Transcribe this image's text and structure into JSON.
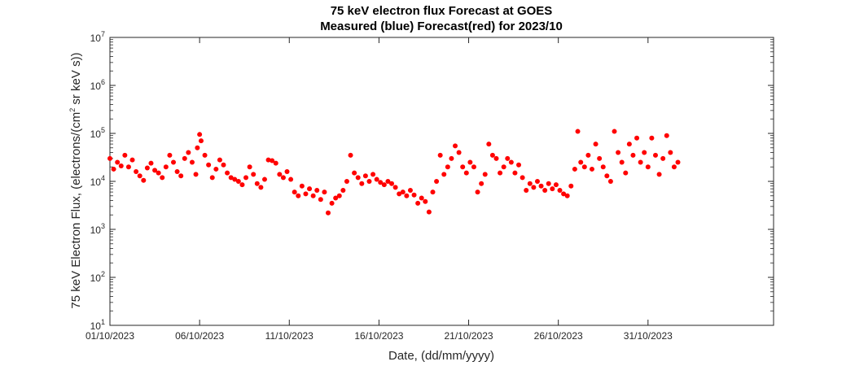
{
  "chart_data": {
    "type": "scatter",
    "title": "75 keV electron flux Forecast at GOES",
    "subtitle": "Measured (blue) Forecast(red) for 2023/10",
    "xlabel": "Date, (dd/mm/yyyy)",
    "ylabel": {
      "prefix": "75 keV Electron Flux, (electrons/(cm",
      "superscript": "2",
      "suffix": " sr keV s))"
    },
    "y_scale": "log",
    "ylim": [
      10,
      10000000
    ],
    "xlim": [
      "01/10/2023",
      "07/11/2023"
    ],
    "y_ticks": [
      {
        "base": "10",
        "exp": "1"
      },
      {
        "base": "10",
        "exp": "2"
      },
      {
        "base": "10",
        "exp": "3"
      },
      {
        "base": "10",
        "exp": "4"
      },
      {
        "base": "10",
        "exp": "5"
      },
      {
        "base": "10",
        "exp": "6"
      },
      {
        "base": "10",
        "exp": "7"
      }
    ],
    "x_ticks": [
      "01/10/2023",
      "06/10/2023",
      "11/10/2023",
      "16/10/2023",
      "21/10/2023",
      "26/10/2023",
      "31/10/2023"
    ],
    "grid": false,
    "marker_color": "#ff0000",
    "series": [
      {
        "color": "#ff0000",
        "points": [
          [
            "01/10/2023 00:00",
            30000
          ],
          [
            "01/10/2023 05:00",
            18000
          ],
          [
            "01/10/2023 10:00",
            25000
          ],
          [
            "01/10/2023 15:00",
            21000
          ],
          [
            "01/10/2023 20:00",
            35000
          ],
          [
            "02/10/2023 01:00",
            20000
          ],
          [
            "02/10/2023 06:00",
            28000
          ],
          [
            "02/10/2023 11:00",
            16000
          ],
          [
            "02/10/2023 16:00",
            13000
          ],
          [
            "02/10/2023 21:00",
            10500
          ],
          [
            "03/10/2023 02:00",
            19000
          ],
          [
            "03/10/2023 07:00",
            24000
          ],
          [
            "03/10/2023 12:00",
            17000
          ],
          [
            "03/10/2023 17:00",
            15000
          ],
          [
            "03/10/2023 22:00",
            12000
          ],
          [
            "04/10/2023 03:00",
            20000
          ],
          [
            "04/10/2023 08:00",
            35000
          ],
          [
            "04/10/2023 13:00",
            25000
          ],
          [
            "04/10/2023 18:00",
            16000
          ],
          [
            "04/10/2023 23:00",
            13000
          ],
          [
            "05/10/2023 04:00",
            30000
          ],
          [
            "05/10/2023 09:00",
            40000
          ],
          [
            "05/10/2023 14:00",
            25000
          ],
          [
            "05/10/2023 19:00",
            14000
          ],
          [
            "05/10/2023 21:00",
            50000
          ],
          [
            "06/10/2023 00:00",
            95000
          ],
          [
            "06/10/2023 02:00",
            70000
          ],
          [
            "06/10/2023 07:00",
            35000
          ],
          [
            "06/10/2023 12:00",
            22000
          ],
          [
            "06/10/2023 17:00",
            12000
          ],
          [
            "06/10/2023 22:00",
            18000
          ],
          [
            "07/10/2023 03:00",
            28000
          ],
          [
            "07/10/2023 08:00",
            22000
          ],
          [
            "07/10/2023 13:00",
            15000
          ],
          [
            "07/10/2023 18:00",
            12000
          ],
          [
            "07/10/2023 23:00",
            11000
          ],
          [
            "08/10/2023 04:00",
            10000
          ],
          [
            "08/10/2023 09:00",
            8500
          ],
          [
            "08/10/2023 14:00",
            12000
          ],
          [
            "08/10/2023 19:00",
            20000
          ],
          [
            "09/10/2023 00:00",
            14000
          ],
          [
            "09/10/2023 05:00",
            9000
          ],
          [
            "09/10/2023 10:00",
            7500
          ],
          [
            "09/10/2023 15:00",
            11000
          ],
          [
            "09/10/2023 20:00",
            28000
          ],
          [
            "10/10/2023 01:00",
            27000
          ],
          [
            "10/10/2023 06:00",
            24000
          ],
          [
            "10/10/2023 11:00",
            14000
          ],
          [
            "10/10/2023 16:00",
            12000
          ],
          [
            "10/10/2023 21:00",
            16000
          ],
          [
            "11/10/2023 02:00",
            11000
          ],
          [
            "11/10/2023 07:00",
            6000
          ],
          [
            "11/10/2023 12:00",
            5000
          ],
          [
            "11/10/2023 17:00",
            8000
          ],
          [
            "11/10/2023 22:00",
            5500
          ],
          [
            "12/10/2023 03:00",
            7000
          ],
          [
            "12/10/2023 08:00",
            5000
          ],
          [
            "12/10/2023 13:00",
            6500
          ],
          [
            "12/10/2023 18:00",
            4200
          ],
          [
            "12/10/2023 23:00",
            6000
          ],
          [
            "13/10/2023 04:00",
            2200
          ],
          [
            "13/10/2023 09:00",
            3500
          ],
          [
            "13/10/2023 14:00",
            4500
          ],
          [
            "13/10/2023 19:00",
            5000
          ],
          [
            "14/10/2023 00:00",
            6500
          ],
          [
            "14/10/2023 05:00",
            10000
          ],
          [
            "14/10/2023 10:00",
            35000
          ],
          [
            "14/10/2023 15:00",
            15000
          ],
          [
            "14/10/2023 20:00",
            12000
          ],
          [
            "15/10/2023 01:00",
            9000
          ],
          [
            "15/10/2023 06:00",
            13000
          ],
          [
            "15/10/2023 11:00",
            10000
          ],
          [
            "15/10/2023 16:00",
            14000
          ],
          [
            "15/10/2023 21:00",
            11000
          ],
          [
            "16/10/2023 02:00",
            9500
          ],
          [
            "16/10/2023 07:00",
            8500
          ],
          [
            "16/10/2023 12:00",
            10000
          ],
          [
            "16/10/2023 17:00",
            9000
          ],
          [
            "16/10/2023 22:00",
            7500
          ],
          [
            "17/10/2023 03:00",
            5500
          ],
          [
            "17/10/2023 08:00",
            6000
          ],
          [
            "17/10/2023 13:00",
            5000
          ],
          [
            "17/10/2023 18:00",
            6500
          ],
          [
            "17/10/2023 23:00",
            5200
          ],
          [
            "18/10/2023 04:00",
            3500
          ],
          [
            "18/10/2023 09:00",
            4500
          ],
          [
            "18/10/2023 14:00",
            3800
          ],
          [
            "18/10/2023 19:00",
            2300
          ],
          [
            "19/10/2023 00:00",
            6000
          ],
          [
            "19/10/2023 05:00",
            10000
          ],
          [
            "19/10/2023 10:00",
            35000
          ],
          [
            "19/10/2023 15:00",
            14000
          ],
          [
            "19/10/2023 20:00",
            20000
          ],
          [
            "20/10/2023 01:00",
            30000
          ],
          [
            "20/10/2023 06:00",
            55000
          ],
          [
            "20/10/2023 11:00",
            40000
          ],
          [
            "20/10/2023 16:00",
            20000
          ],
          [
            "20/10/2023 21:00",
            15000
          ],
          [
            "21/10/2023 02:00",
            25000
          ],
          [
            "21/10/2023 07:00",
            20000
          ],
          [
            "21/10/2023 12:00",
            6000
          ],
          [
            "21/10/2023 17:00",
            9000
          ],
          [
            "21/10/2023 22:00",
            14000
          ],
          [
            "22/10/2023 03:00",
            60000
          ],
          [
            "22/10/2023 08:00",
            35000
          ],
          [
            "22/10/2023 13:00",
            30000
          ],
          [
            "22/10/2023 18:00",
            15000
          ],
          [
            "22/10/2023 23:00",
            20000
          ],
          [
            "23/10/2023 04:00",
            30000
          ],
          [
            "23/10/2023 09:00",
            25000
          ],
          [
            "23/10/2023 14:00",
            15000
          ],
          [
            "23/10/2023 19:00",
            22000
          ],
          [
            "24/10/2023 00:00",
            12000
          ],
          [
            "24/10/2023 05:00",
            6500
          ],
          [
            "24/10/2023 10:00",
            9000
          ],
          [
            "24/10/2023 15:00",
            7500
          ],
          [
            "24/10/2023 20:00",
            10000
          ],
          [
            "25/10/2023 01:00",
            8000
          ],
          [
            "25/10/2023 06:00",
            6500
          ],
          [
            "25/10/2023 11:00",
            9000
          ],
          [
            "25/10/2023 16:00",
            7000
          ],
          [
            "25/10/2023 21:00",
            8500
          ],
          [
            "26/10/2023 02:00",
            6500
          ],
          [
            "26/10/2023 07:00",
            5500
          ],
          [
            "26/10/2023 12:00",
            5000
          ],
          [
            "26/10/2023 17:00",
            8000
          ],
          [
            "26/10/2023 22:00",
            18000
          ],
          [
            "27/10/2023 02:00",
            110000
          ],
          [
            "27/10/2023 06:00",
            25000
          ],
          [
            "27/10/2023 11:00",
            20000
          ],
          [
            "27/10/2023 16:00",
            35000
          ],
          [
            "27/10/2023 21:00",
            18000
          ],
          [
            "28/10/2023 02:00",
            60000
          ],
          [
            "28/10/2023 07:00",
            30000
          ],
          [
            "28/10/2023 12:00",
            20000
          ],
          [
            "28/10/2023 17:00",
            13000
          ],
          [
            "28/10/2023 22:00",
            10000
          ],
          [
            "29/10/2023 03:00",
            110000
          ],
          [
            "29/10/2023 08:00",
            40000
          ],
          [
            "29/10/2023 13:00",
            25000
          ],
          [
            "29/10/2023 18:00",
            15000
          ],
          [
            "29/10/2023 23:00",
            60000
          ],
          [
            "30/10/2023 04:00",
            35000
          ],
          [
            "30/10/2023 09:00",
            80000
          ],
          [
            "30/10/2023 14:00",
            25000
          ],
          [
            "30/10/2023 19:00",
            40000
          ],
          [
            "31/10/2023 00:00",
            20000
          ],
          [
            "31/10/2023 05:00",
            80000
          ],
          [
            "31/10/2023 10:00",
            35000
          ],
          [
            "31/10/2023 15:00",
            14000
          ],
          [
            "31/10/2023 20:00",
            30000
          ],
          [
            "01/11/2023 01:00",
            90000
          ],
          [
            "01/11/2023 06:00",
            40000
          ],
          [
            "01/11/2023 11:00",
            20000
          ],
          [
            "01/11/2023 16:00",
            25000
          ]
        ]
      }
    ]
  }
}
